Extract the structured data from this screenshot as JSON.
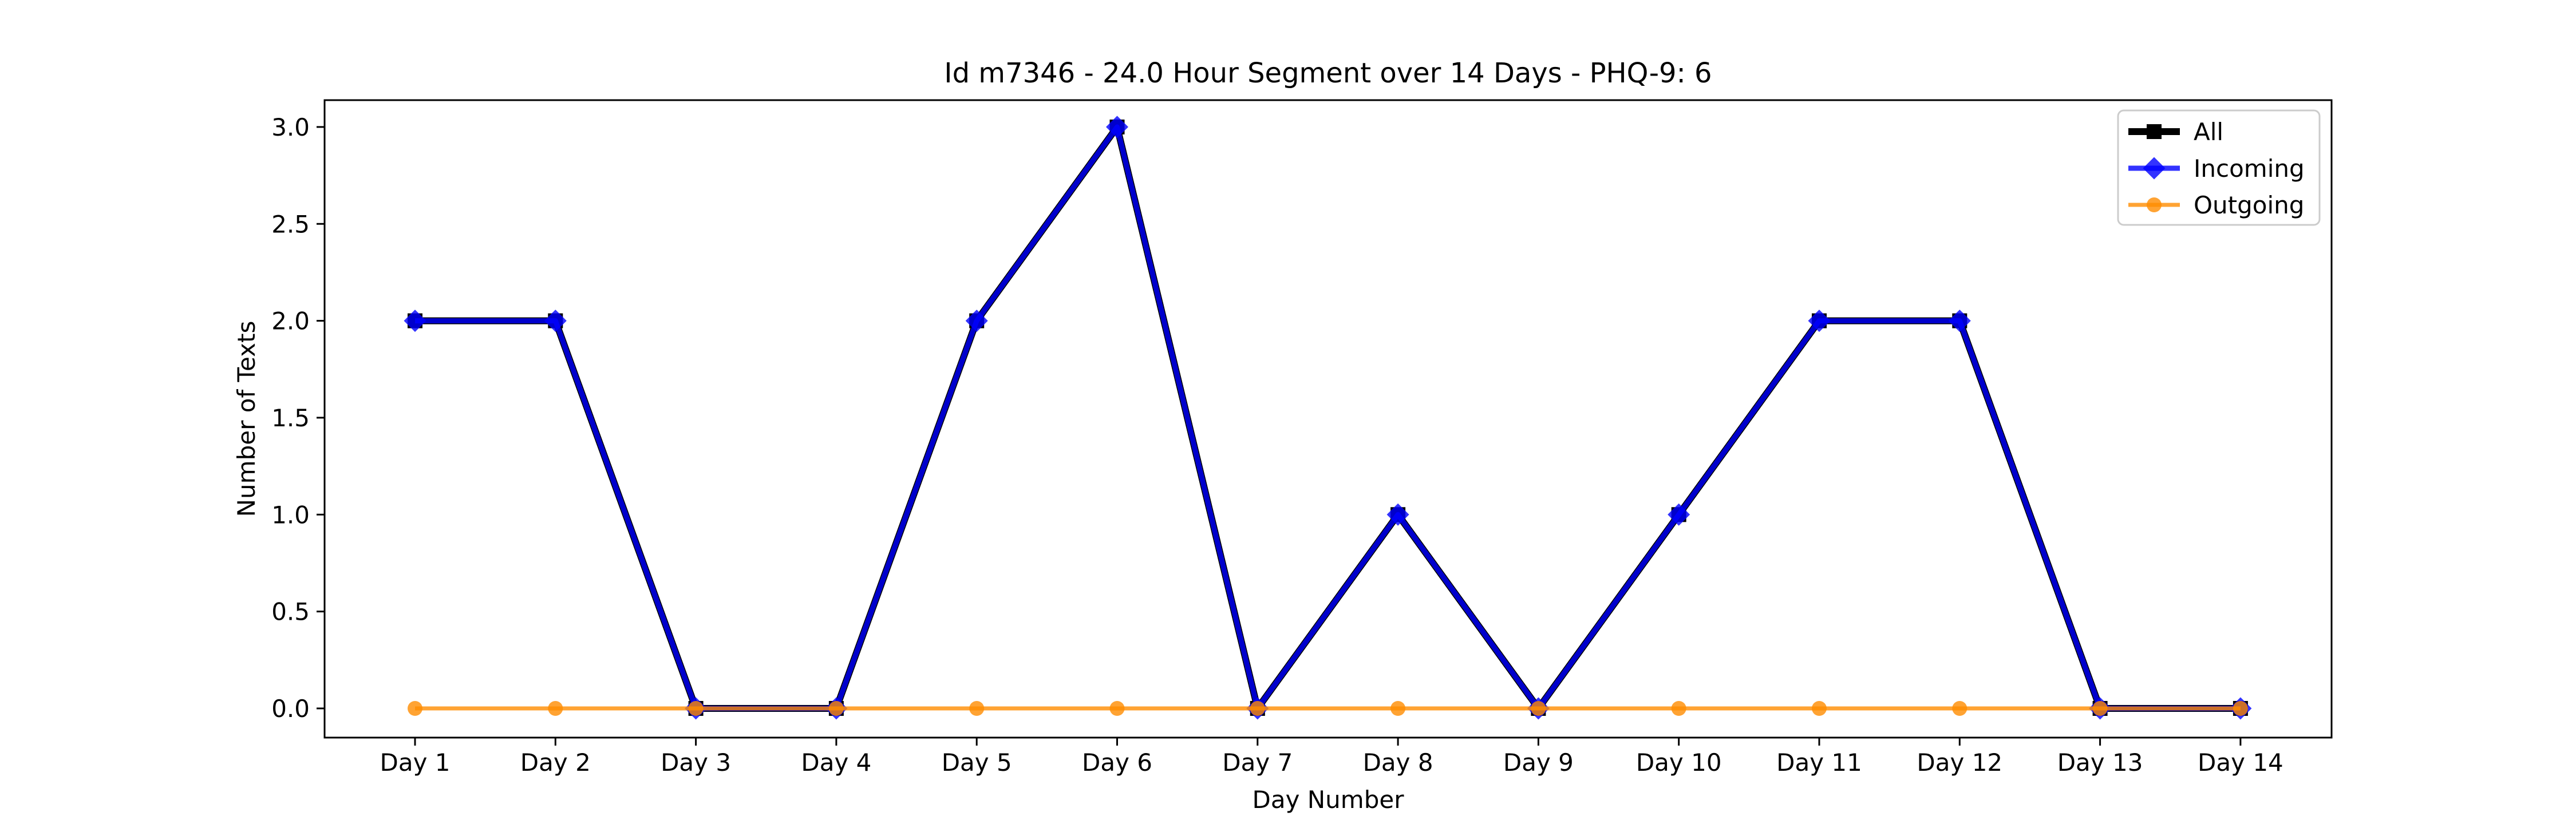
{
  "chart_data": {
    "type": "line",
    "title": "Id m7346 - 24.0 Hour Segment over 14 Days - PHQ-9: 6",
    "xlabel": "Day Number",
    "ylabel": "Number of Texts",
    "categories": [
      "Day 1",
      "Day 2",
      "Day 3",
      "Day 4",
      "Day 5",
      "Day 6",
      "Day 7",
      "Day 8",
      "Day 9",
      "Day 10",
      "Day 11",
      "Day 12",
      "Day 13",
      "Day 14"
    ],
    "ylim": [
      -0.15,
      3.15
    ],
    "yticks": [
      "0.0",
      "0.5",
      "1.0",
      "1.5",
      "2.0",
      "2.5",
      "3.0"
    ],
    "ytick_values": [
      0,
      0.5,
      1.0,
      1.5,
      2.0,
      2.5,
      3.0
    ],
    "grid": false,
    "legend_position": "top-right",
    "series": [
      {
        "name": "All",
        "values": [
          2,
          2,
          0,
          0,
          2,
          3,
          0,
          1,
          0,
          1,
          2,
          2,
          0,
          0
        ],
        "color": "#000000",
        "marker": "square"
      },
      {
        "name": "Incoming",
        "values": [
          2,
          2,
          0,
          0,
          2,
          3,
          0,
          1,
          0,
          1,
          2,
          2,
          0,
          0
        ],
        "color": "#0000ff",
        "marker": "diamond"
      },
      {
        "name": "Outgoing",
        "values": [
          0,
          0,
          0,
          0,
          0,
          0,
          0,
          0,
          0,
          0,
          0,
          0,
          0,
          0
        ],
        "color": "#ff8c00",
        "marker": "circle"
      }
    ]
  }
}
